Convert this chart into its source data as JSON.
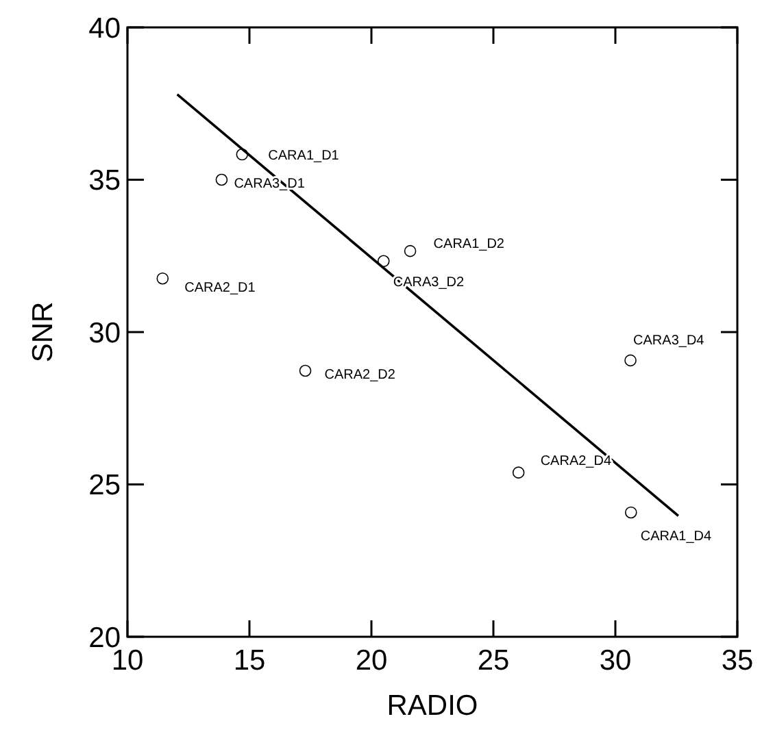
{
  "chart_data": {
    "type": "scatter",
    "xlabel": "RADIO",
    "ylabel": "SNR",
    "xlim": [
      10,
      35
    ],
    "ylim": [
      20,
      40
    ],
    "xticks": [
      10,
      15,
      20,
      25,
      30,
      35
    ],
    "yticks": [
      20,
      25,
      30,
      35,
      40
    ],
    "grid": false,
    "marker": "circle",
    "series": [
      {
        "color": "#000000",
        "x": [
          14.7,
          13.86,
          11.44,
          17.29,
          20.5,
          21.59,
          30.62,
          26.03,
          30.64
        ],
        "values": [
          35.83,
          35.0,
          31.76,
          28.73,
          32.33,
          32.66,
          29.07,
          25.39,
          24.08
        ]
      },
      {
        "type": "line",
        "color": "#000000",
        "marker": "none",
        "line_style": "solid",
        "x": [
          12.04,
          32.58
        ],
        "values": [
          37.8,
          23.97
        ]
      }
    ],
    "annotations": [
      {
        "text": "CARA1_D1",
        "x": 14.7,
        "y": 35.83
      },
      {
        "text": "CARA3_D1",
        "x": 13.86,
        "y": 35.0
      },
      {
        "text": "CARA2_D1",
        "x": 11.44,
        "y": 31.76
      },
      {
        "text": "CARA2_D2",
        "x": 17.29,
        "y": 28.73
      },
      {
        "text": "CARA3_D2",
        "x": 20.5,
        "y": 32.33
      },
      {
        "text": "CARA1_D2",
        "x": 21.59,
        "y": 32.66
      },
      {
        "text": "CARA3_D4",
        "x": 30.62,
        "y": 29.07
      },
      {
        "text": "CARA2_D4",
        "x": 26.03,
        "y": 25.39
      },
      {
        "text": "CARA1_D4",
        "x": 30.64,
        "y": 24.08
      }
    ]
  }
}
